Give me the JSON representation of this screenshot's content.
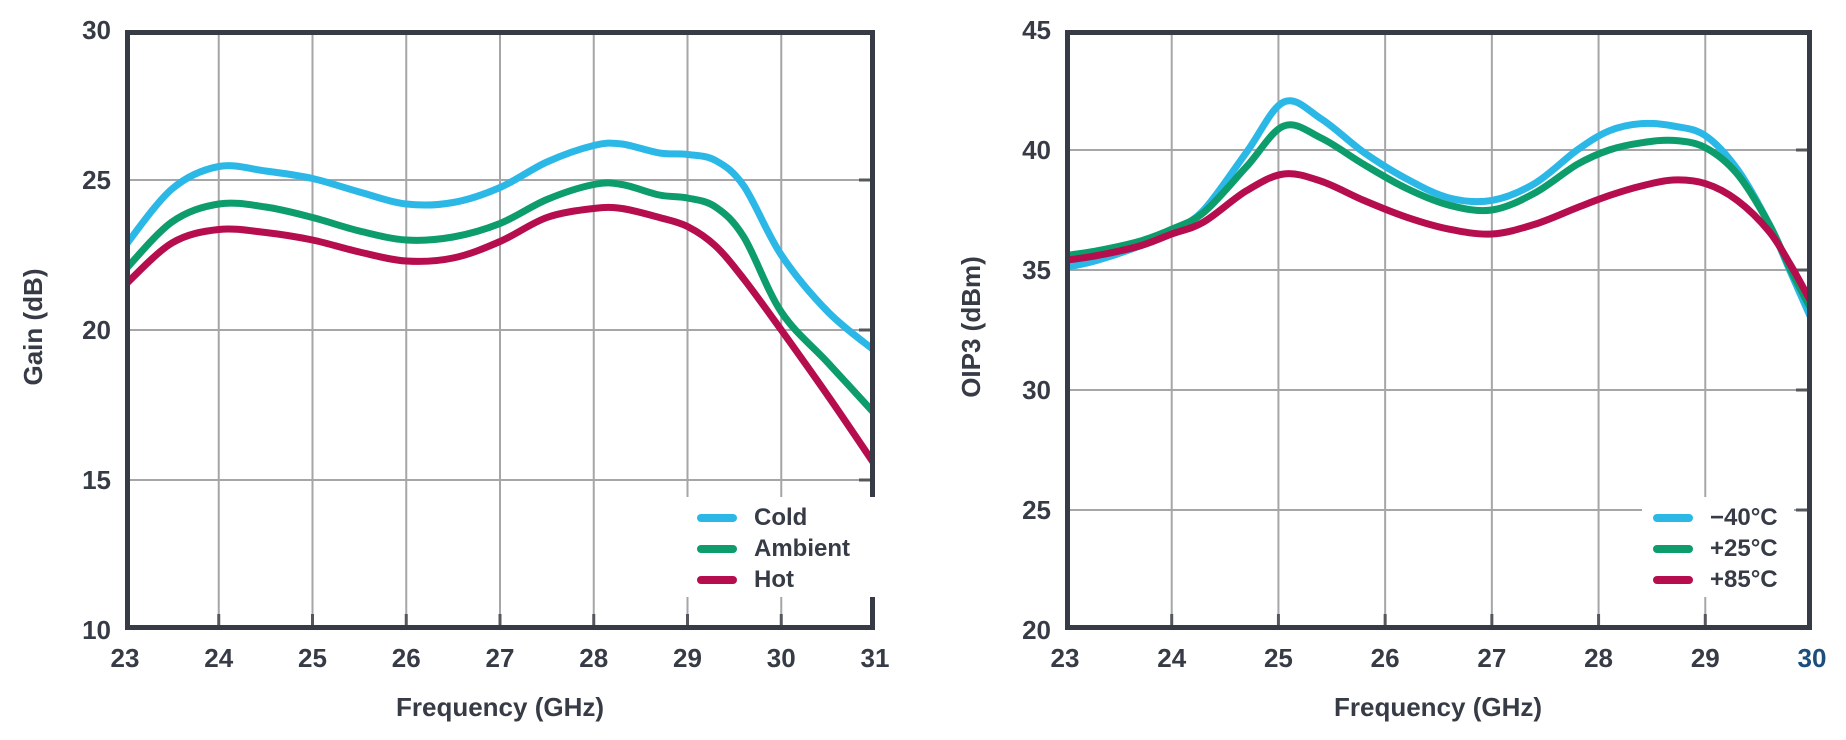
{
  "style": {
    "background": "#ffffff",
    "axis_color": "#363b46",
    "grid_color": "#a6a6a8",
    "tick_color": "#54585d",
    "series_cyan": "#2bb8e7",
    "series_green": "#0d9c6b",
    "series_red": "#b50d4d",
    "highlight_tick_color": "#1c4e7d"
  },
  "chart_data": [
    {
      "type": "line",
      "title": "",
      "xlabel": "Frequency (GHz)",
      "ylabel": "Gain (dB)",
      "xlim": [
        23,
        31
      ],
      "ylim": [
        10,
        30
      ],
      "x_ticks": [
        23,
        24,
        25,
        26,
        27,
        28,
        29,
        30,
        31
      ],
      "y_ticks": [
        10,
        15,
        20,
        25,
        30
      ],
      "grid": true,
      "legend_position": "lower right",
      "x": [
        23,
        23.5,
        24,
        24.5,
        25,
        25.5,
        26,
        26.5,
        27,
        27.5,
        28,
        28.3,
        28.7,
        29,
        29.3,
        29.6,
        30,
        30.5,
        31
      ],
      "series": [
        {
          "name": "Cold",
          "color": "#2bb8e7",
          "values": [
            22.8,
            24.7,
            25.45,
            25.3,
            25.05,
            24.6,
            24.2,
            24.25,
            24.75,
            25.6,
            26.15,
            26.2,
            25.9,
            25.85,
            25.65,
            24.8,
            22.5,
            20.6,
            19.3
          ]
        },
        {
          "name": "Ambient",
          "color": "#0d9c6b",
          "values": [
            22.0,
            23.6,
            24.2,
            24.1,
            23.75,
            23.3,
            23.0,
            23.1,
            23.55,
            24.35,
            24.85,
            24.85,
            24.5,
            24.4,
            24.1,
            23.1,
            20.6,
            18.9,
            17.2
          ]
        },
        {
          "name": "Hot",
          "color": "#b50d4d",
          "values": [
            21.5,
            22.9,
            23.35,
            23.25,
            23.0,
            22.6,
            22.3,
            22.4,
            22.95,
            23.75,
            24.05,
            24.05,
            23.75,
            23.45,
            22.8,
            21.7,
            20.0,
            17.8,
            15.5
          ]
        }
      ]
    },
    {
      "type": "line",
      "title": "",
      "xlabel": "Frequency (GHz)",
      "ylabel": "OIP3 (dBm)",
      "xlim": [
        23,
        30
      ],
      "ylim": [
        20,
        45
      ],
      "x_ticks": [
        23,
        24,
        25,
        26,
        27,
        28,
        29,
        30
      ],
      "y_ticks": [
        20,
        25,
        30,
        35,
        40,
        45
      ],
      "x_tick_highlight": {
        "value": 30,
        "color": "#1c4e7d"
      },
      "grid": true,
      "legend_position": "lower right",
      "x": [
        23,
        23.3,
        23.7,
        24,
        24.3,
        24.7,
        25.05,
        25.4,
        25.8,
        26.2,
        26.6,
        27,
        27.4,
        27.8,
        28.1,
        28.4,
        28.7,
        29,
        29.3,
        29.6,
        29.8,
        30
      ],
      "series": [
        {
          "name": "−40°C",
          "color": "#2bb8e7",
          "values": [
            35.1,
            35.4,
            36.0,
            36.6,
            37.5,
            39.9,
            42.0,
            41.3,
            39.9,
            38.8,
            38.0,
            37.9,
            38.6,
            40.0,
            40.8,
            41.1,
            41.0,
            40.6,
            39.2,
            36.9,
            34.9,
            32.9
          ]
        },
        {
          "name": "+25°C",
          "color": "#0d9c6b",
          "values": [
            35.6,
            35.8,
            36.2,
            36.7,
            37.4,
            39.3,
            41.0,
            40.5,
            39.4,
            38.4,
            37.7,
            37.5,
            38.2,
            39.4,
            40.0,
            40.3,
            40.4,
            40.1,
            39.0,
            36.9,
            35.0,
            33.3
          ]
        },
        {
          "name": "+85°C",
          "color": "#b50d4d",
          "values": [
            35.4,
            35.6,
            36.0,
            36.5,
            37.0,
            38.3,
            39.0,
            38.7,
            37.9,
            37.2,
            36.7,
            36.5,
            36.9,
            37.6,
            38.1,
            38.5,
            38.75,
            38.6,
            37.9,
            36.6,
            35.2,
            33.6
          ]
        }
      ]
    }
  ]
}
